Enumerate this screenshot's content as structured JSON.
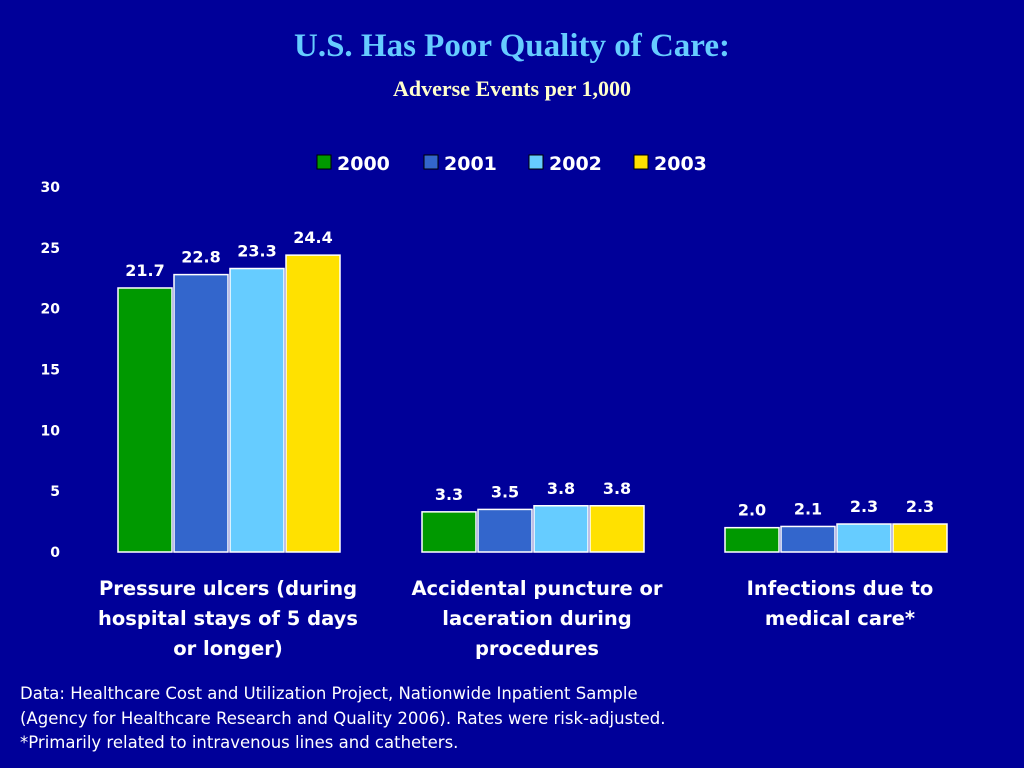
{
  "chart_data": {
    "type": "bar",
    "title": "U.S. Has Poor Quality of Care:",
    "subtitle": "Adverse Events per 1,000",
    "categories": [
      "Pressure ulcers (during hospital stays of 5 days or longer)",
      "Accidental puncture or laceration during procedures",
      "Infections due to medical care*"
    ],
    "category_lines": [
      [
        "Pressure ulcers (during",
        "hospital stays of 5 days",
        "or longer)"
      ],
      [
        "Accidental puncture or",
        "laceration during",
        "procedures"
      ],
      [
        "Infections due to",
        "medical care*"
      ]
    ],
    "series": [
      {
        "name": "2000",
        "color": "#009900",
        "values": [
          21.7,
          3.3,
          2.0
        ],
        "labels": [
          "21.7",
          "3.3",
          "2.0"
        ]
      },
      {
        "name": "2001",
        "color": "#3366cc",
        "values": [
          22.8,
          3.5,
          2.1
        ],
        "labels": [
          "22.8",
          "3.5",
          "2.1"
        ]
      },
      {
        "name": "2002",
        "color": "#66ccff",
        "values": [
          23.3,
          3.8,
          2.3
        ],
        "labels": [
          "23.3",
          "3.8",
          "2.3"
        ]
      },
      {
        "name": "2003",
        "color": "#ffe100",
        "values": [
          24.4,
          3.8,
          2.3
        ],
        "labels": [
          "24.4",
          "3.8",
          "2.3"
        ]
      }
    ],
    "ylim": [
      0,
      30
    ],
    "yticks": [
      0,
      5,
      10,
      15,
      20,
      25,
      30
    ],
    "grid": false,
    "legend": "top-center"
  },
  "footnote": [
    "Data: Healthcare Cost and Utilization Project, Nationwide Inpatient Sample",
    "(Agency for Healthcare Research and Quality 2006). Rates were risk-adjusted.",
    "*Primarily related to intravenous lines and catheters."
  ]
}
